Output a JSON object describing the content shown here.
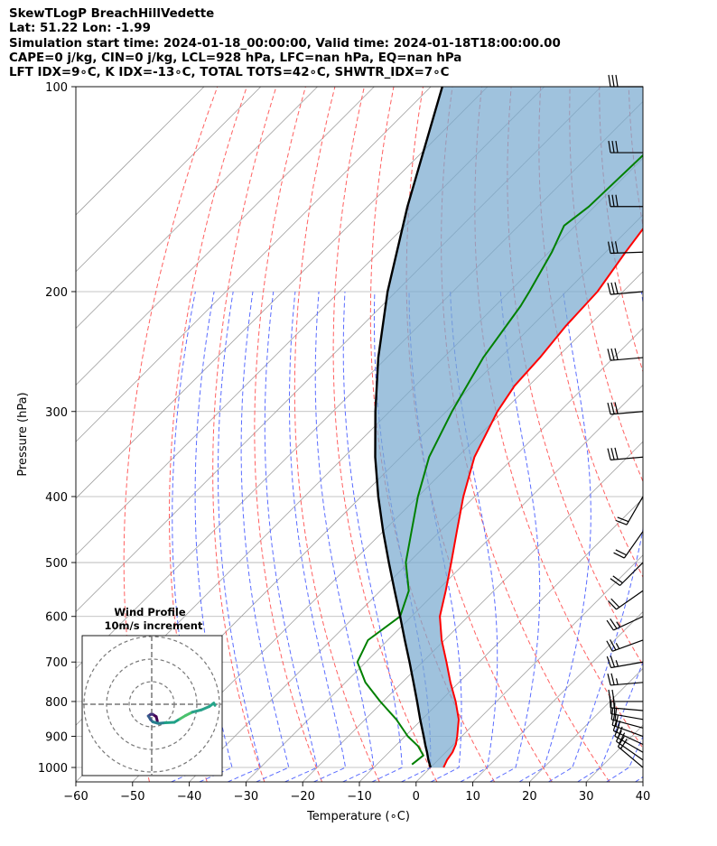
{
  "header": {
    "line1": "SkewTLogP BreachHillVedette",
    "line2": "Lat: 51.22   Lon: -1.99",
    "line3": "Simulation start time: 2024-01-18_00:00:00, Valid time: 2024-01-18T18:00:00.00",
    "line4": "CAPE=0 j/kg, CIN=0 j/kg, LCL=928 hPa, LFC=nan hPa, EQ=nan hPa",
    "line5": "LFT IDX=9∘C, K IDX=-13∘C, TOTAL TOTS=42∘C, SHWTR_IDX=7∘C"
  },
  "chart_data": {
    "type": "skewt",
    "xlabel": "Temperature (∘C)",
    "ylabel": "Pressure (hPa)",
    "xlim": [
      -60,
      40
    ],
    "ylim": [
      1050,
      100
    ],
    "x_ticks": [
      "−60",
      "−50",
      "−40",
      "−30",
      "−20",
      "−10",
      "0",
      "10",
      "20",
      "30",
      "40"
    ],
    "y_ticks": [
      "100",
      "200",
      "300",
      "400",
      "500",
      "600",
      "700",
      "800",
      "900",
      "1000"
    ],
    "series": [
      {
        "name": "Temperature",
        "color": "#ff0000",
        "points": [
          {
            "p": 1000,
            "t": 2.3
          },
          {
            "p": 975,
            "t": 1.6
          },
          {
            "p": 950,
            "t": 1.2
          },
          {
            "p": 925,
            "t": 0.4
          },
          {
            "p": 900,
            "t": -0.8
          },
          {
            "p": 850,
            "t": -3.5
          },
          {
            "p": 800,
            "t": -7.2
          },
          {
            "p": 750,
            "t": -11.5
          },
          {
            "p": 700,
            "t": -15.8
          },
          {
            "p": 650,
            "t": -20.5
          },
          {
            "p": 600,
            "t": -25.0
          },
          {
            "p": 550,
            "t": -28.5
          },
          {
            "p": 500,
            "t": -32.5
          },
          {
            "p": 450,
            "t": -37.0
          },
          {
            "p": 400,
            "t": -42.0
          },
          {
            "p": 350,
            "t": -47.0
          },
          {
            "p": 300,
            "t": -51.0
          },
          {
            "p": 275,
            "t": -52.5
          },
          {
            "p": 250,
            "t": -53.0
          },
          {
            "p": 225,
            "t": -54.0
          },
          {
            "p": 200,
            "t": -54.5
          },
          {
            "p": 175,
            "t": -56.5
          },
          {
            "p": 150,
            "t": -58.5
          },
          {
            "p": 125,
            "t": -60.0
          },
          {
            "p": 100,
            "t": -61.0
          }
        ]
      },
      {
        "name": "Dewpoint",
        "color": "#008000",
        "points": [
          {
            "p": 990,
            "t": -3.8
          },
          {
            "p": 960,
            "t": -3.4
          },
          {
            "p": 930,
            "t": -6.0
          },
          {
            "p": 900,
            "t": -9.5
          },
          {
            "p": 850,
            "t": -14.5
          },
          {
            "p": 800,
            "t": -20.5
          },
          {
            "p": 750,
            "t": -26.5
          },
          {
            "p": 700,
            "t": -31.5
          },
          {
            "p": 650,
            "t": -33.5
          },
          {
            "p": 600,
            "t": -32.0
          },
          {
            "p": 550,
            "t": -35.0
          },
          {
            "p": 500,
            "t": -40.5
          },
          {
            "p": 450,
            "t": -45.0
          },
          {
            "p": 400,
            "t": -50.0
          },
          {
            "p": 350,
            "t": -55.0
          },
          {
            "p": 300,
            "t": -59.0
          },
          {
            "p": 250,
            "t": -63.0
          },
          {
            "p": 210,
            "t": -65.5
          },
          {
            "p": 200,
            "t": -66.5
          },
          {
            "p": 175,
            "t": -69.5
          },
          {
            "p": 160,
            "t": -72.0
          },
          {
            "p": 150,
            "t": -71.0
          },
          {
            "p": 125,
            "t": -70.5
          },
          {
            "p": 100,
            "t": -70.0
          }
        ]
      },
      {
        "name": "Parcel profile",
        "color": "#000000",
        "points": [
          {
            "p": 1000,
            "t": 0.0
          },
          {
            "p": 975,
            "t": -1.7
          },
          {
            "p": 950,
            "t": -3.3
          },
          {
            "p": 928,
            "t": -4.8
          },
          {
            "p": 900,
            "t": -6.7
          },
          {
            "p": 850,
            "t": -10.3
          },
          {
            "p": 800,
            "t": -14.0
          },
          {
            "p": 750,
            "t": -18.0
          },
          {
            "p": 700,
            "t": -22.3
          },
          {
            "p": 650,
            "t": -27.0
          },
          {
            "p": 600,
            "t": -32.0
          },
          {
            "p": 550,
            "t": -37.5
          },
          {
            "p": 500,
            "t": -43.5
          },
          {
            "p": 450,
            "t": -50.0
          },
          {
            "p": 400,
            "t": -57.0
          },
          {
            "p": 350,
            "t": -64.5
          },
          {
            "p": 300,
            "t": -72.5
          },
          {
            "p": 250,
            "t": -81.5
          },
          {
            "p": 200,
            "t": -91.5
          },
          {
            "p": 150,
            "t": -103.0
          },
          {
            "p": 100,
            "t": -118.0
          }
        ]
      }
    ],
    "wind_barbs": [
      {
        "p": 1000,
        "speed_kt": 20,
        "dir_deg": 310
      },
      {
        "p": 975,
        "speed_kt": 20,
        "dir_deg": 305
      },
      {
        "p": 950,
        "speed_kt": 20,
        "dir_deg": 300
      },
      {
        "p": 925,
        "speed_kt": 20,
        "dir_deg": 295
      },
      {
        "p": 900,
        "speed_kt": 20,
        "dir_deg": 290
      },
      {
        "p": 875,
        "speed_kt": 20,
        "dir_deg": 285
      },
      {
        "p": 850,
        "speed_kt": 20,
        "dir_deg": 280
      },
      {
        "p": 825,
        "speed_kt": 20,
        "dir_deg": 275
      },
      {
        "p": 800,
        "speed_kt": 20,
        "dir_deg": 270
      },
      {
        "p": 750,
        "speed_kt": 25,
        "dir_deg": 265
      },
      {
        "p": 700,
        "speed_kt": 25,
        "dir_deg": 260
      },
      {
        "p": 650,
        "speed_kt": 25,
        "dir_deg": 250
      },
      {
        "p": 600,
        "speed_kt": 25,
        "dir_deg": 245
      },
      {
        "p": 550,
        "speed_kt": 20,
        "dir_deg": 235
      },
      {
        "p": 500,
        "speed_kt": 20,
        "dir_deg": 225
      },
      {
        "p": 450,
        "speed_kt": 20,
        "dir_deg": 215
      },
      {
        "p": 400,
        "speed_kt": 20,
        "dir_deg": 210
      },
      {
        "p": 350,
        "speed_kt": 30,
        "dir_deg": 265
      },
      {
        "p": 300,
        "speed_kt": 30,
        "dir_deg": 265
      },
      {
        "p": 250,
        "speed_kt": 30,
        "dir_deg": 265
      },
      {
        "p": 200,
        "speed_kt": 30,
        "dir_deg": 265
      },
      {
        "p": 175,
        "speed_kt": 30,
        "dir_deg": 268
      },
      {
        "p": 150,
        "speed_kt": 30,
        "dir_deg": 270
      },
      {
        "p": 125,
        "speed_kt": 30,
        "dir_deg": 270
      },
      {
        "p": 100,
        "speed_kt": 30,
        "dir_deg": 270
      }
    ],
    "hodograph": {
      "title_line1": "Wind Profile",
      "title_line2": "10m/s increment",
      "ring_step_ms": 10,
      "points": [
        {
          "u": 2.5,
          "v": 7.5
        },
        {
          "u": 2.0,
          "v": 5.5
        },
        {
          "u": 0.5,
          "v": 4.5
        },
        {
          "u": -0.5,
          "v": 4.5
        },
        {
          "u": -1.5,
          "v": 5.2
        },
        {
          "u": -0.5,
          "v": 6.8
        },
        {
          "u": 0.5,
          "v": 7.8
        },
        {
          "u": 3.0,
          "v": 8.5
        },
        {
          "u": 6.0,
          "v": 8.2
        },
        {
          "u": 10.0,
          "v": 8.0
        },
        {
          "u": 12.5,
          "v": 6.5
        },
        {
          "u": 15.0,
          "v": 5.0
        },
        {
          "u": 18.0,
          "v": 3.5
        },
        {
          "u": 22.0,
          "v": 2.5
        },
        {
          "u": 25.5,
          "v": 1.0
        },
        {
          "u": 27.5,
          "v": -0.5
        },
        {
          "u": 28.0,
          "v": 0.5
        }
      ]
    }
  }
}
